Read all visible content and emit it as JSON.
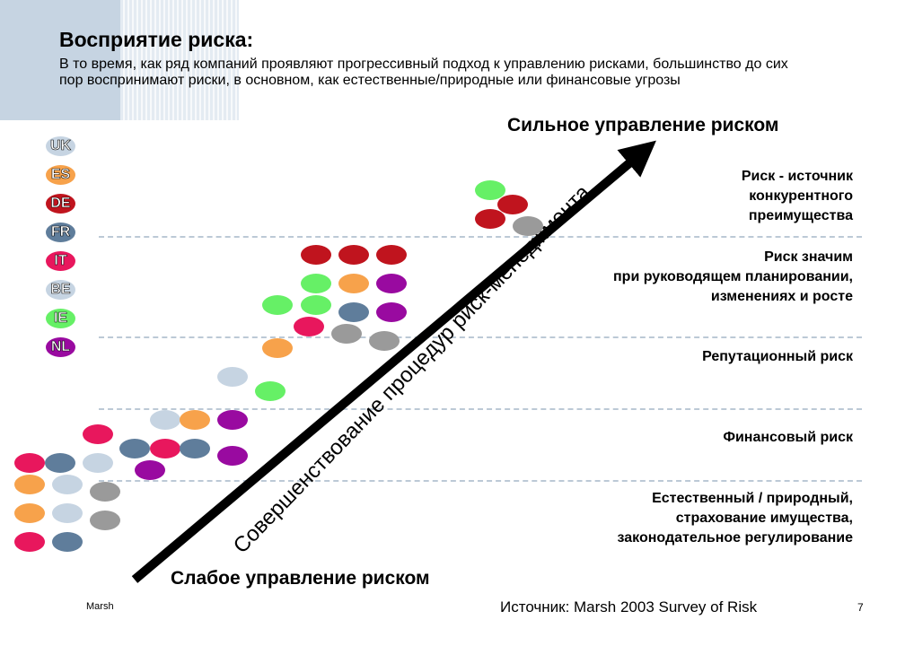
{
  "header": {
    "title": "Восприятие риска:",
    "subtitle": " В то время, как ряд компаний проявляют прогрессивный подход к управлению рисками, большинство до сих пор воспринимают риски, в основном, как естественные/природные или финансовые угрозы"
  },
  "legend": [
    {
      "code": "UK",
      "color": "#c6d4e2"
    },
    {
      "code": "ES",
      "color": "#f7a24b"
    },
    {
      "code": "DE",
      "color": "#c0141e"
    },
    {
      "code": "FR",
      "color": "#5f7d9b"
    },
    {
      "code": "IT",
      "color": "#e8175d"
    },
    {
      "code": "BE",
      "color": "#c6d4e2"
    },
    {
      "code": "IE",
      "color": "#66f066"
    },
    {
      "code": "NL",
      "color": "#990aa0"
    }
  ],
  "axis": {
    "strong": "Сильное управление риском",
    "weak": "Слабое управление риском",
    "arrow_label": "Совершенствование процедур риск-менеджмента"
  },
  "levels": [
    {
      "text": "Риск - источник\nконкурентного\nпреимущества"
    },
    {
      "text": "Риск значим\nпри руководящем планировании,\nизменениях и росте"
    },
    {
      "text": "Репутационный риск"
    },
    {
      "text": "Финансовый риск"
    },
    {
      "text": "Естественный / природный,\nстрахование имущества,\nзаконодательное регулирование"
    }
  ],
  "colors": {
    "UK": "#c6d4e2",
    "ES": "#f7a24b",
    "DE": "#c0141e",
    "FR": "#5f7d9b",
    "IT": "#e8175d",
    "BE": "#c6d4e2",
    "IE": "#66f066",
    "NL": "#990aa0",
    "grey": "#9a9a9a",
    "dash": "#bcc9d6"
  },
  "footer": {
    "brand": "Marsh",
    "source": "Источник: Marsh 2003 Survey of Risk",
    "page": "7"
  }
}
